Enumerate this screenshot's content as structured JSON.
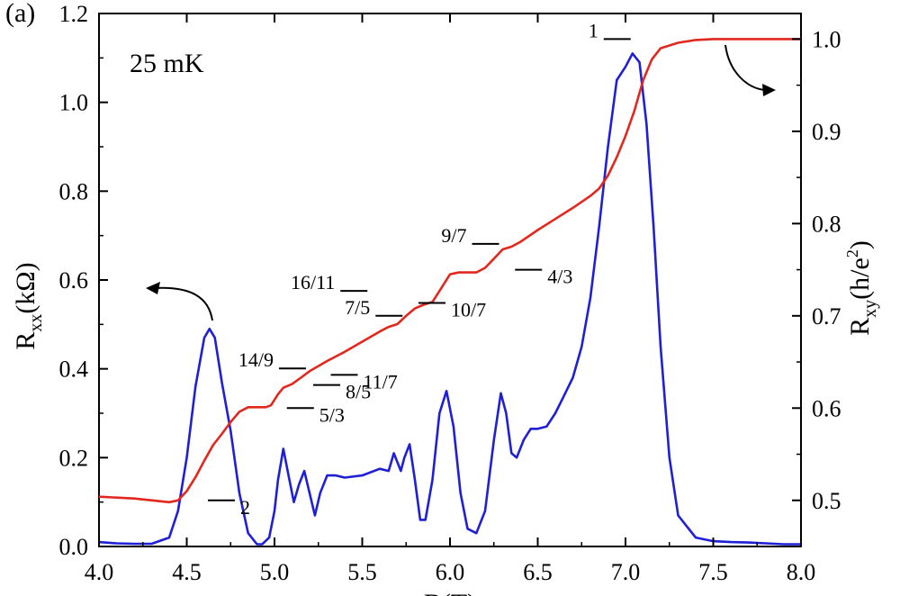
{
  "panel_label": "(a)",
  "temperature_label": "25 mK",
  "chart_data": {
    "type": "line",
    "xlabel": "B(T)",
    "xlim": [
      4.0,
      8.0
    ],
    "xticks": [
      "4.0",
      "4.5",
      "5.0",
      "5.5",
      "6.0",
      "6.5",
      "7.0",
      "7.5",
      "8.0"
    ],
    "y_left": {
      "label_main": "R",
      "label_sub": "xx",
      "label_rest": "(kΩ)",
      "lim": [
        0.0,
        1.2
      ],
      "ticks": [
        "0.0",
        "0.2",
        "0.4",
        "0.6",
        "0.8",
        "1.0",
        "1.2"
      ]
    },
    "y_right": {
      "label_main": "R",
      "label_sub": "xy",
      "label_rest": "(h/e",
      "label_sup": "2",
      "label_close": ")",
      "lim": [
        0.45,
        1.0277
      ],
      "ticks": [
        "0.5",
        "0.6",
        "0.7",
        "0.8",
        "0.9",
        "1.0"
      ]
    },
    "series": [
      {
        "axis": "left",
        "color": "#1f1fd6",
        "x": [
          4.0,
          4.1,
          4.2,
          4.3,
          4.4,
          4.45,
          4.5,
          4.55,
          4.6,
          4.63,
          4.66,
          4.7,
          4.75,
          4.8,
          4.85,
          4.9,
          4.93,
          4.97,
          5.0,
          5.02,
          5.05,
          5.08,
          5.11,
          5.14,
          5.17,
          5.2,
          5.23,
          5.26,
          5.3,
          5.35,
          5.4,
          5.5,
          5.6,
          5.65,
          5.68,
          5.72,
          5.74,
          5.77,
          5.8,
          5.83,
          5.86,
          5.9,
          5.94,
          5.98,
          6.02,
          6.06,
          6.1,
          6.15,
          6.2,
          6.25,
          6.29,
          6.32,
          6.35,
          6.38,
          6.42,
          6.46,
          6.5,
          6.55,
          6.6,
          6.65,
          6.7,
          6.75,
          6.8,
          6.85,
          6.9,
          6.95,
          7.0,
          7.04,
          7.08,
          7.12,
          7.16,
          7.2,
          7.25,
          7.3,
          7.4,
          7.5,
          7.6,
          7.7,
          7.8,
          7.9,
          8.0
        ],
        "y": [
          0.01,
          0.007,
          0.006,
          0.006,
          0.02,
          0.08,
          0.2,
          0.36,
          0.47,
          0.49,
          0.47,
          0.37,
          0.26,
          0.12,
          0.03,
          0.005,
          0.005,
          0.02,
          0.08,
          0.15,
          0.22,
          0.16,
          0.1,
          0.14,
          0.17,
          0.12,
          0.07,
          0.12,
          0.16,
          0.16,
          0.155,
          0.16,
          0.175,
          0.17,
          0.21,
          0.17,
          0.2,
          0.23,
          0.15,
          0.06,
          0.06,
          0.15,
          0.3,
          0.35,
          0.27,
          0.12,
          0.04,
          0.03,
          0.08,
          0.24,
          0.345,
          0.3,
          0.21,
          0.2,
          0.24,
          0.265,
          0.265,
          0.27,
          0.3,
          0.34,
          0.38,
          0.45,
          0.56,
          0.72,
          0.9,
          1.05,
          1.08,
          1.11,
          1.09,
          0.95,
          0.72,
          0.45,
          0.2,
          0.07,
          0.02,
          0.012,
          0.01,
          0.009,
          0.007,
          0.005,
          0.005
        ]
      },
      {
        "axis": "right",
        "color": "#e0281e",
        "x": [
          4.0,
          4.2,
          4.4,
          4.45,
          4.5,
          4.55,
          4.6,
          4.65,
          4.7,
          4.75,
          4.8,
          4.85,
          4.9,
          4.95,
          4.98,
          5.02,
          5.05,
          5.1,
          5.15,
          5.2,
          5.3,
          5.4,
          5.5,
          5.6,
          5.65,
          5.7,
          5.75,
          5.8,
          5.85,
          5.9,
          5.95,
          6.0,
          6.05,
          6.1,
          6.15,
          6.2,
          6.25,
          6.3,
          6.35,
          6.4,
          6.5,
          6.6,
          6.7,
          6.8,
          6.85,
          6.9,
          6.95,
          7.0,
          7.05,
          7.1,
          7.15,
          7.2,
          7.3,
          7.4,
          7.5,
          7.6,
          7.8,
          8.0
        ],
        "y": [
          0.504,
          0.502,
          0.498,
          0.5,
          0.51,
          0.525,
          0.543,
          0.56,
          0.572,
          0.585,
          0.596,
          0.601,
          0.601,
          0.601,
          0.603,
          0.615,
          0.622,
          0.626,
          0.633,
          0.64,
          0.651,
          0.661,
          0.672,
          0.683,
          0.688,
          0.691,
          0.7,
          0.708,
          0.712,
          0.715,
          0.73,
          0.745,
          0.747,
          0.747,
          0.747,
          0.752,
          0.762,
          0.772,
          0.775,
          0.78,
          0.793,
          0.805,
          0.817,
          0.83,
          0.838,
          0.852,
          0.872,
          0.895,
          0.922,
          0.955,
          0.978,
          0.99,
          0.996,
          0.999,
          1.0,
          1.0,
          1.0,
          1.0
        ]
      }
    ],
    "annotations": [
      {
        "label": "1",
        "x": 7.05,
        "y": 1.0,
        "side": "left"
      },
      {
        "label": "2",
        "x": 4.6,
        "y": 0.5,
        "side": "right"
      },
      {
        "label": "5/3",
        "x": 5.05,
        "y": 0.6,
        "side": "right"
      },
      {
        "label": "8/5",
        "x": 5.2,
        "y": 0.625,
        "side": "right"
      },
      {
        "label": "11/7",
        "x": 5.3,
        "y": 0.636,
        "side": "right"
      },
      {
        "label": "14/9",
        "x": 5.2,
        "y": 0.643,
        "side": "left"
      },
      {
        "label": "10/7",
        "x": 5.8,
        "y": 0.714,
        "side": "right"
      },
      {
        "label": "16/11",
        "x": 5.55,
        "y": 0.727,
        "side": "left"
      },
      {
        "label": "7/5",
        "x": 5.75,
        "y": 0.7,
        "side": "left"
      },
      {
        "label": "4/3",
        "x": 6.35,
        "y": 0.75,
        "side": "right"
      },
      {
        "label": "9/7",
        "x": 6.3,
        "y": 0.778,
        "side": "left"
      }
    ]
  }
}
